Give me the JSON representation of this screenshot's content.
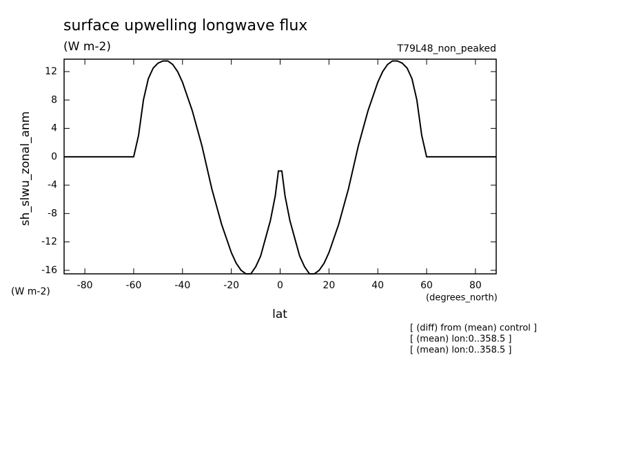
{
  "chart_data": {
    "type": "line",
    "title": "surface upwelling longwave flux",
    "subtitle": "(W m-2)",
    "dataset_label": "T79L48_non_peaked",
    "y_label": "sh_slwu_zonal_anm",
    "y_units": "(W m-2)",
    "x_label": "lat",
    "x_units": "(degrees_north)",
    "annotations": [
      "[ (diff) from (mean) control ]",
      "[ (mean) lon:0..358.5 ]",
      "[ (mean) lon:0..358.5 ]"
    ],
    "xlim": [
      -88.5,
      88.5
    ],
    "ylim": [
      -16.5,
      13.75
    ],
    "xticks": [
      -80,
      -60,
      -40,
      -20,
      0,
      20,
      40,
      60,
      80
    ],
    "yticks": [
      12,
      8,
      4,
      0,
      -4,
      -8,
      -12,
      -16
    ],
    "x": [
      -88.5,
      -60,
      -58,
      -56,
      -54,
      -52,
      -50,
      -48,
      -46,
      -44,
      -42,
      -40,
      -38,
      -36,
      -34,
      -32,
      -30,
      -28,
      -26,
      -24,
      -22,
      -20,
      -18,
      -16,
      -14,
      -12,
      -10,
      -8,
      -6,
      -4,
      -2,
      -0.7,
      0.7,
      2,
      4,
      6,
      8,
      10,
      12,
      14,
      16,
      18,
      20,
      22,
      24,
      26,
      28,
      30,
      32,
      34,
      36,
      38,
      40,
      42,
      44,
      46,
      48,
      50,
      52,
      54,
      56,
      58,
      60,
      88.5
    ],
    "series": [
      {
        "color": "#000000",
        "values": [
          0,
          0,
          3,
          8,
          11,
          12.5,
          13.2,
          13.5,
          13.5,
          13,
          12,
          10.5,
          8.5,
          6.5,
          4,
          1.5,
          -1.5,
          -4.5,
          -7,
          -9.5,
          -11.5,
          -13.5,
          -15,
          -16,
          -16.5,
          -16.5,
          -15.5,
          -14,
          -11.5,
          -9,
          -5.5,
          -2,
          -2,
          -5.5,
          -9,
          -11.5,
          -14,
          -15.5,
          -16.5,
          -16.5,
          -16,
          -15,
          -13.5,
          -11.5,
          -9.5,
          -7,
          -4.5,
          -1.5,
          1.5,
          4,
          6.5,
          8.5,
          10.5,
          12,
          13,
          13.5,
          13.5,
          13.2,
          12.5,
          11,
          8,
          3,
          0,
          0
        ]
      }
    ]
  }
}
